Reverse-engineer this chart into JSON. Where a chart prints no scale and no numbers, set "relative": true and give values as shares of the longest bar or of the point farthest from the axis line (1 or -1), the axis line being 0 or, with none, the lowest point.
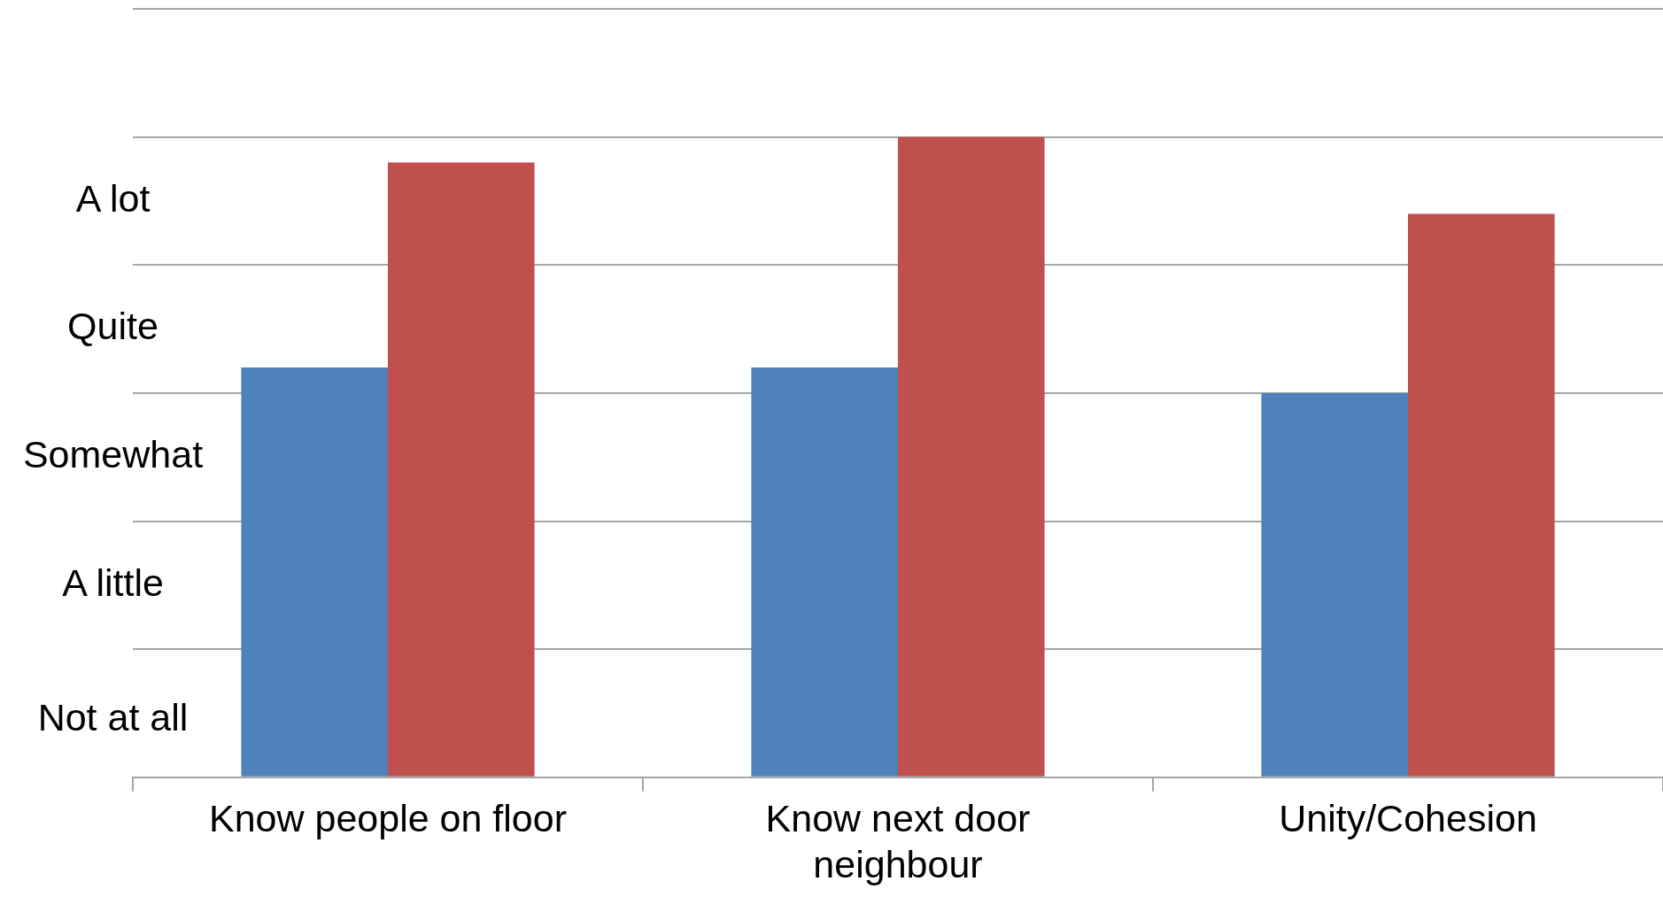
{
  "chart_data": {
    "type": "bar",
    "categories": [
      "Know people on floor",
      "Know next door neighbour",
      "Unity/Cohesion"
    ],
    "series": [
      {
        "color": "#4f81bd",
        "values": [
          0.64,
          0.64,
          0.6
        ]
      },
      {
        "color": "#c0504d",
        "values": [
          0.96,
          1,
          0.88
        ]
      }
    ],
    "relative": true,
    "annotations": [
      "Not at all",
      "A little",
      "Somewhat",
      "Quite",
      "A lot"
    ],
    "grid": "y",
    "legend": false
  }
}
